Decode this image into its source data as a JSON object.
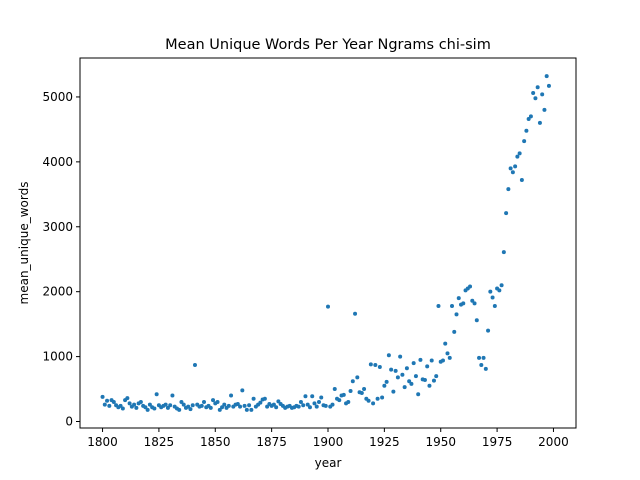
{
  "chart_data": {
    "type": "scatter",
    "title": "Mean Unique Words Per Year Ngrams chi-sim",
    "xlabel": "year",
    "ylabel": "mean_unique_words",
    "xlim": [
      1790,
      2010
    ],
    "ylim": [
      -100,
      5600
    ],
    "xticks": [
      1800,
      1825,
      1850,
      1875,
      1900,
      1925,
      1950,
      1975,
      2000
    ],
    "yticks": [
      0,
      1000,
      2000,
      3000,
      4000,
      5000
    ],
    "grid": false,
    "marker_color": "#1f77b4",
    "series": [
      {
        "points": [
          [
            1800,
            380
          ],
          [
            1801,
            260
          ],
          [
            1802,
            320
          ],
          [
            1803,
            240
          ],
          [
            1804,
            330
          ],
          [
            1805,
            300
          ],
          [
            1806,
            250
          ],
          [
            1807,
            220
          ],
          [
            1808,
            240
          ],
          [
            1809,
            200
          ],
          [
            1810,
            330
          ],
          [
            1811,
            360
          ],
          [
            1812,
            280
          ],
          [
            1813,
            230
          ],
          [
            1814,
            260
          ],
          [
            1815,
            210
          ],
          [
            1816,
            280
          ],
          [
            1817,
            300
          ],
          [
            1818,
            240
          ],
          [
            1819,
            220
          ],
          [
            1820,
            180
          ],
          [
            1821,
            260
          ],
          [
            1822,
            220
          ],
          [
            1823,
            200
          ],
          [
            1824,
            420
          ],
          [
            1825,
            250
          ],
          [
            1826,
            220
          ],
          [
            1827,
            240
          ],
          [
            1828,
            260
          ],
          [
            1829,
            210
          ],
          [
            1830,
            250
          ],
          [
            1831,
            400
          ],
          [
            1832,
            230
          ],
          [
            1833,
            200
          ],
          [
            1834,
            180
          ],
          [
            1835,
            300
          ],
          [
            1836,
            260
          ],
          [
            1837,
            210
          ],
          [
            1838,
            230
          ],
          [
            1839,
            190
          ],
          [
            1840,
            250
          ],
          [
            1841,
            870
          ],
          [
            1842,
            260
          ],
          [
            1843,
            230
          ],
          [
            1844,
            240
          ],
          [
            1845,
            300
          ],
          [
            1846,
            220
          ],
          [
            1847,
            240
          ],
          [
            1848,
            210
          ],
          [
            1849,
            330
          ],
          [
            1850,
            280
          ],
          [
            1851,
            300
          ],
          [
            1852,
            180
          ],
          [
            1853,
            220
          ],
          [
            1854,
            260
          ],
          [
            1855,
            210
          ],
          [
            1856,
            240
          ],
          [
            1857,
            400
          ],
          [
            1858,
            230
          ],
          [
            1859,
            260
          ],
          [
            1860,
            270
          ],
          [
            1861,
            230
          ],
          [
            1862,
            480
          ],
          [
            1863,
            240
          ],
          [
            1864,
            180
          ],
          [
            1865,
            250
          ],
          [
            1866,
            180
          ],
          [
            1867,
            350
          ],
          [
            1868,
            230
          ],
          [
            1869,
            260
          ],
          [
            1870,
            290
          ],
          [
            1871,
            340
          ],
          [
            1872,
            350
          ],
          [
            1873,
            230
          ],
          [
            1874,
            270
          ],
          [
            1875,
            240
          ],
          [
            1876,
            260
          ],
          [
            1877,
            220
          ],
          [
            1878,
            310
          ],
          [
            1879,
            270
          ],
          [
            1880,
            240
          ],
          [
            1881,
            210
          ],
          [
            1882,
            230
          ],
          [
            1883,
            240
          ],
          [
            1884,
            210
          ],
          [
            1885,
            220
          ],
          [
            1886,
            240
          ],
          [
            1887,
            230
          ],
          [
            1888,
            300
          ],
          [
            1889,
            250
          ],
          [
            1890,
            390
          ],
          [
            1891,
            260
          ],
          [
            1892,
            220
          ],
          [
            1893,
            390
          ],
          [
            1894,
            280
          ],
          [
            1895,
            230
          ],
          [
            1896,
            300
          ],
          [
            1897,
            370
          ],
          [
            1898,
            250
          ],
          [
            1899,
            240
          ],
          [
            1900,
            1770
          ],
          [
            1901,
            230
          ],
          [
            1902,
            260
          ],
          [
            1903,
            500
          ],
          [
            1904,
            350
          ],
          [
            1905,
            330
          ],
          [
            1906,
            400
          ],
          [
            1907,
            410
          ],
          [
            1908,
            280
          ],
          [
            1909,
            300
          ],
          [
            1910,
            470
          ],
          [
            1911,
            620
          ],
          [
            1912,
            1660
          ],
          [
            1913,
            680
          ],
          [
            1914,
            450
          ],
          [
            1915,
            440
          ],
          [
            1916,
            500
          ],
          [
            1917,
            350
          ],
          [
            1918,
            320
          ],
          [
            1919,
            880
          ],
          [
            1920,
            280
          ],
          [
            1921,
            870
          ],
          [
            1922,
            350
          ],
          [
            1923,
            840
          ],
          [
            1924,
            370
          ],
          [
            1925,
            550
          ],
          [
            1926,
            610
          ],
          [
            1927,
            1020
          ],
          [
            1928,
            800
          ],
          [
            1929,
            460
          ],
          [
            1930,
            780
          ],
          [
            1931,
            680
          ],
          [
            1932,
            1000
          ],
          [
            1933,
            720
          ],
          [
            1934,
            530
          ],
          [
            1935,
            820
          ],
          [
            1936,
            620
          ],
          [
            1937,
            580
          ],
          [
            1938,
            900
          ],
          [
            1939,
            700
          ],
          [
            1940,
            420
          ],
          [
            1941,
            950
          ],
          [
            1942,
            650
          ],
          [
            1943,
            640
          ],
          [
            1944,
            850
          ],
          [
            1945,
            550
          ],
          [
            1946,
            940
          ],
          [
            1947,
            630
          ],
          [
            1948,
            700
          ],
          [
            1949,
            1780
          ],
          [
            1950,
            920
          ],
          [
            1951,
            940
          ],
          [
            1952,
            1200
          ],
          [
            1953,
            1050
          ],
          [
            1954,
            980
          ],
          [
            1955,
            1780
          ],
          [
            1956,
            1380
          ],
          [
            1957,
            1650
          ],
          [
            1958,
            1900
          ],
          [
            1959,
            1800
          ],
          [
            1960,
            1820
          ],
          [
            1961,
            2020
          ],
          [
            1962,
            2050
          ],
          [
            1963,
            2080
          ],
          [
            1964,
            1860
          ],
          [
            1965,
            1820
          ],
          [
            1966,
            1560
          ],
          [
            1967,
            980
          ],
          [
            1968,
            870
          ],
          [
            1969,
            980
          ],
          [
            1970,
            810
          ],
          [
            1971,
            1400
          ],
          [
            1972,
            2000
          ],
          [
            1973,
            1910
          ],
          [
            1974,
            1780
          ],
          [
            1975,
            2050
          ],
          [
            1976,
            2020
          ],
          [
            1977,
            2100
          ],
          [
            1978,
            2610
          ],
          [
            1979,
            3210
          ],
          [
            1980,
            3580
          ],
          [
            1981,
            3900
          ],
          [
            1982,
            3840
          ],
          [
            1983,
            3930
          ],
          [
            1984,
            4080
          ],
          [
            1985,
            4130
          ],
          [
            1986,
            3720
          ],
          [
            1987,
            4320
          ],
          [
            1988,
            4480
          ],
          [
            1989,
            4660
          ],
          [
            1990,
            4700
          ],
          [
            1991,
            5060
          ],
          [
            1992,
            4980
          ],
          [
            1993,
            5150
          ],
          [
            1994,
            4600
          ],
          [
            1995,
            5040
          ],
          [
            1996,
            4800
          ],
          [
            1997,
            5320
          ],
          [
            1998,
            5170
          ]
        ]
      }
    ]
  }
}
